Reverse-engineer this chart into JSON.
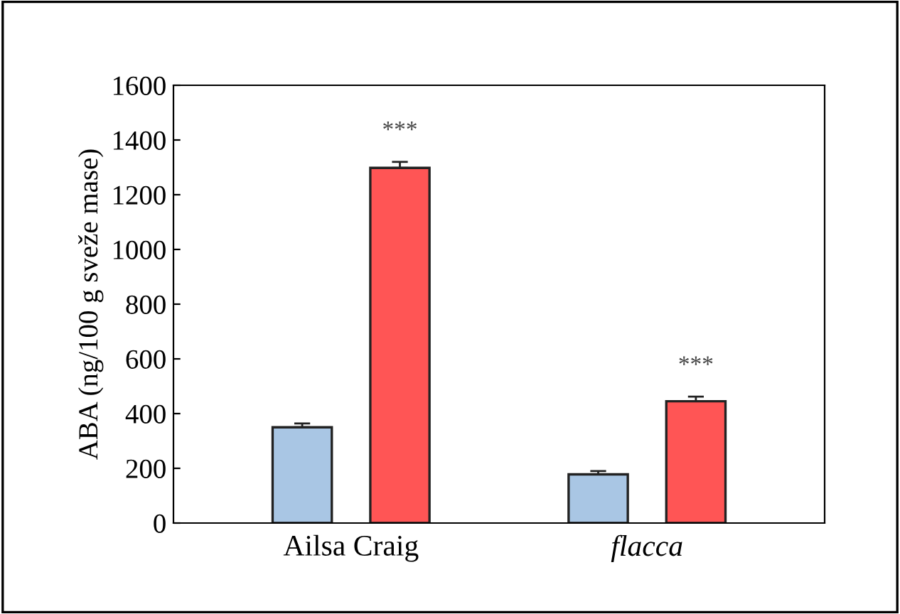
{
  "chart_data": {
    "type": "bar",
    "ylabel": "ABA (ng/100 g sveže mase)",
    "categories": [
      "Ailsa Craig",
      "flacca"
    ],
    "series": [
      {
        "color": "#a9c6e4",
        "values": [
          350,
          178
        ],
        "errors": [
          14,
          12
        ]
      },
      {
        "color": "#ff5555",
        "values": [
          1298,
          445
        ],
        "errors": [
          22,
          17
        ]
      }
    ],
    "ylim": [
      0,
      1600
    ],
    "yticks": [
      0,
      200,
      400,
      600,
      800,
      1000,
      1200,
      1400,
      1600
    ],
    "grid": false,
    "legend": false,
    "annotations": [
      "***",
      "***"
    ]
  }
}
